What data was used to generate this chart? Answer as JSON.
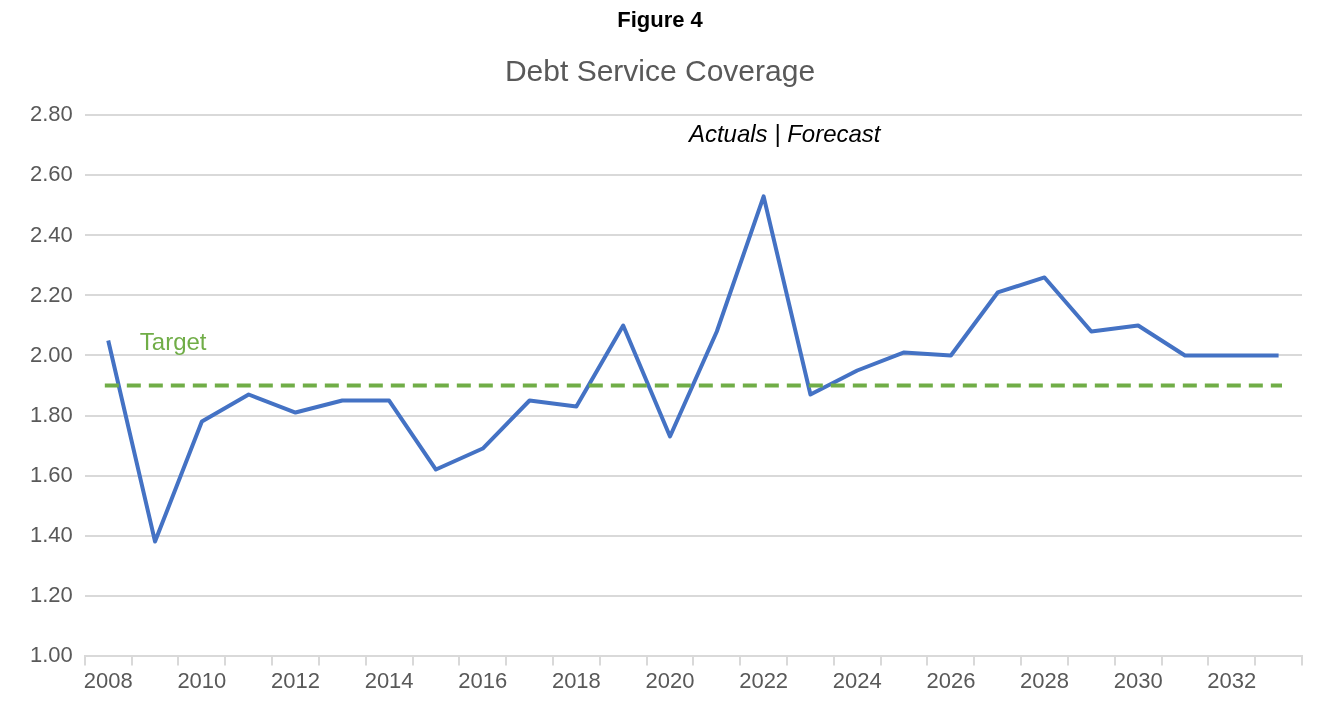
{
  "chart_data": {
    "type": "line",
    "title": "Figure 4",
    "subtitle": "Debt Service Coverage",
    "categories": [
      "2008",
      null,
      "2010",
      null,
      "2012",
      null,
      "2014",
      null,
      "2016",
      null,
      "2018",
      null,
      "2020",
      null,
      "2022",
      null,
      "2024",
      null,
      "2026",
      null,
      "2028",
      null,
      "2030",
      null,
      "2032",
      null
    ],
    "series": [
      {
        "color": "#4472c4",
        "values": [
          2.05,
          1.38,
          1.78,
          1.87,
          1.81,
          1.85,
          1.85,
          1.62,
          1.69,
          1.85,
          1.83,
          2.1,
          1.73,
          2.08,
          2.53,
          1.87,
          1.95,
          2.01,
          2.0,
          2.21,
          2.26,
          2.08,
          2.1,
          2.0,
          2.0,
          2.0
        ]
      }
    ],
    "ylim": [
      1,
      2.8
    ],
    "yticks": [
      {
        "value": 1,
        "label": "1.00"
      },
      {
        "value": 1.2,
        "label": "1.20"
      },
      {
        "value": 1.4,
        "label": "1.40"
      },
      {
        "value": 1.6,
        "label": "1.60"
      },
      {
        "value": 1.8,
        "label": "1.80"
      },
      {
        "value": 2,
        "label": "2.00"
      },
      {
        "value": 2.2,
        "label": "2.20"
      },
      {
        "value": 2.4,
        "label": "2.40"
      },
      {
        "value": 2.6,
        "label": "2.60"
      },
      {
        "value": 2.8,
        "label": "2.80"
      }
    ],
    "ref_lines": [
      {
        "axis": "y",
        "value": 1.9,
        "label": "Target",
        "color": "#70ad47",
        "line_style": "dashed"
      }
    ],
    "annotations": [
      "Actuals | Forecast"
    ],
    "grid": "y",
    "legend": false,
    "marker": "none",
    "line_style": "solid"
  }
}
